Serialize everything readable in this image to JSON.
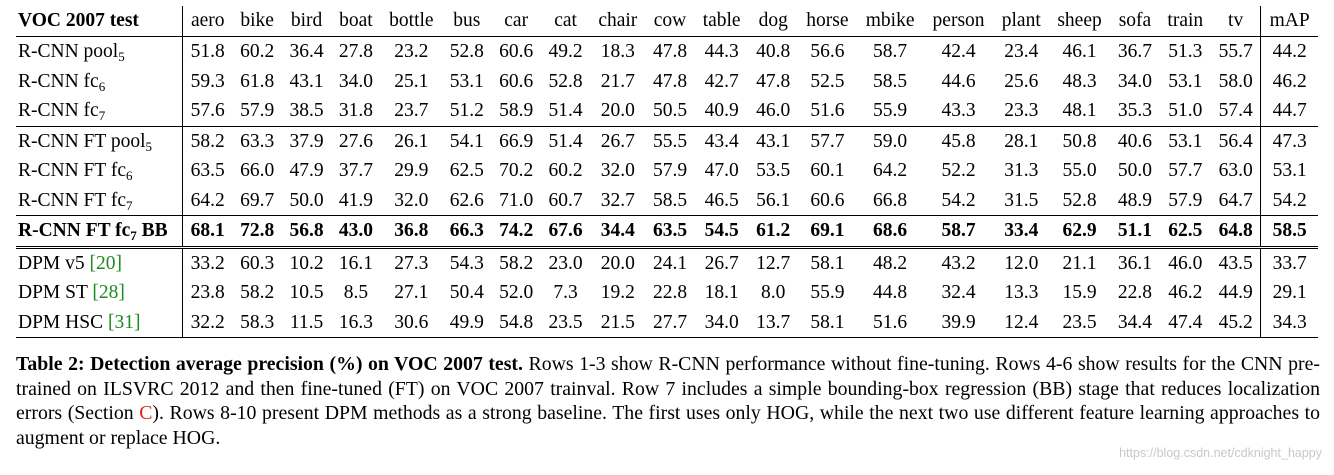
{
  "table": {
    "header_label": "VOC 2007 test",
    "columns": [
      "aero",
      "bike",
      "bird",
      "boat",
      "bottle",
      "bus",
      "car",
      "cat",
      "chair",
      "cow",
      "table",
      "dog",
      "horse",
      "mbike",
      "person",
      "plant",
      "sheep",
      "sofa",
      "train",
      "tv"
    ],
    "map_label": "mAP",
    "rows": [
      {
        "name": "R-CNN pool",
        "sub": "5",
        "suffix": "",
        "cite": "",
        "cells": [
          "51.8",
          "60.2",
          "36.4",
          "27.8",
          "23.2",
          "52.8",
          "60.6",
          "49.2",
          "18.3",
          "47.8",
          "44.3",
          "40.8",
          "56.6",
          "58.7",
          "42.4",
          "23.4",
          "46.1",
          "36.7",
          "51.3",
          "55.7"
        ],
        "map": "44.2"
      },
      {
        "name": "R-CNN fc",
        "sub": "6",
        "suffix": "",
        "cite": "",
        "cells": [
          "59.3",
          "61.8",
          "43.1",
          "34.0",
          "25.1",
          "53.1",
          "60.6",
          "52.8",
          "21.7",
          "47.8",
          "42.7",
          "47.8",
          "52.5",
          "58.5",
          "44.6",
          "25.6",
          "48.3",
          "34.0",
          "53.1",
          "58.0"
        ],
        "map": "46.2"
      },
      {
        "name": "R-CNN fc",
        "sub": "7",
        "suffix": "",
        "cite": "",
        "cells": [
          "57.6",
          "57.9",
          "38.5",
          "31.8",
          "23.7",
          "51.2",
          "58.9",
          "51.4",
          "20.0",
          "50.5",
          "40.9",
          "46.0",
          "51.6",
          "55.9",
          "43.3",
          "23.3",
          "48.1",
          "35.3",
          "51.0",
          "57.4"
        ],
        "map": "44.7"
      },
      {
        "name": "R-CNN FT pool",
        "sub": "5",
        "suffix": "",
        "cite": "",
        "cells": [
          "58.2",
          "63.3",
          "37.9",
          "27.6",
          "26.1",
          "54.1",
          "66.9",
          "51.4",
          "26.7",
          "55.5",
          "43.4",
          "43.1",
          "57.7",
          "59.0",
          "45.8",
          "28.1",
          "50.8",
          "40.6",
          "53.1",
          "56.4"
        ],
        "map": "47.3"
      },
      {
        "name": "R-CNN FT fc",
        "sub": "6",
        "suffix": "",
        "cite": "",
        "cells": [
          "63.5",
          "66.0",
          "47.9",
          "37.7",
          "29.9",
          "62.5",
          "70.2",
          "60.2",
          "32.0",
          "57.9",
          "47.0",
          "53.5",
          "60.1",
          "64.2",
          "52.2",
          "31.3",
          "55.0",
          "50.0",
          "57.7",
          "63.0"
        ],
        "map": "53.1"
      },
      {
        "name": "R-CNN FT fc",
        "sub": "7",
        "suffix": "",
        "cite": "",
        "cells": [
          "64.2",
          "69.7",
          "50.0",
          "41.9",
          "32.0",
          "62.6",
          "71.0",
          "60.7",
          "32.7",
          "58.5",
          "46.5",
          "56.1",
          "60.6",
          "66.8",
          "54.2",
          "31.5",
          "52.8",
          "48.9",
          "57.9",
          "64.7"
        ],
        "map": "54.2"
      },
      {
        "name": "R-CNN FT fc",
        "sub": "7",
        "suffix": " BB",
        "cite": "",
        "cells": [
          "68.1",
          "72.8",
          "56.8",
          "43.0",
          "36.8",
          "66.3",
          "74.2",
          "67.6",
          "34.4",
          "63.5",
          "54.5",
          "61.2",
          "69.1",
          "68.6",
          "58.7",
          "33.4",
          "62.9",
          "51.1",
          "62.5",
          "64.8"
        ],
        "map": "58.5"
      },
      {
        "name": "DPM v5 ",
        "sub": "",
        "suffix": "",
        "cite": "[20]",
        "cells": [
          "33.2",
          "60.3",
          "10.2",
          "16.1",
          "27.3",
          "54.3",
          "58.2",
          "23.0",
          "20.0",
          "24.1",
          "26.7",
          "12.7",
          "58.1",
          "48.2",
          "43.2",
          "12.0",
          "21.1",
          "36.1",
          "46.0",
          "43.5"
        ],
        "map": "33.7"
      },
      {
        "name": "DPM ST ",
        "sub": "",
        "suffix": "",
        "cite": "[28]",
        "cells": [
          "23.8",
          "58.2",
          "10.5",
          "8.5",
          "27.1",
          "50.4",
          "52.0",
          "7.3",
          "19.2",
          "22.8",
          "18.1",
          "8.0",
          "55.9",
          "44.8",
          "32.4",
          "13.3",
          "15.9",
          "22.8",
          "46.2",
          "44.9"
        ],
        "map": "29.1"
      },
      {
        "name": "DPM HSC ",
        "sub": "",
        "suffix": "",
        "cite": "[31]",
        "cells": [
          "32.2",
          "58.3",
          "11.5",
          "16.3",
          "30.6",
          "49.9",
          "54.8",
          "23.5",
          "21.5",
          "27.7",
          "34.0",
          "13.7",
          "58.1",
          "51.6",
          "39.9",
          "12.4",
          "23.5",
          "34.4",
          "47.4",
          "45.2"
        ],
        "map": "34.3"
      }
    ]
  },
  "caption": {
    "bold": "Table 2: Detection average precision (%) on VOC 2007 test.",
    "text1": " Rows 1-3 show R-CNN performance without fine-tuning. Rows 4-6 show results for the CNN pre-trained on ILSVRC 2012 and then fine-tuned (FT) on VOC 2007 trainval. Row 7 includes a simple bounding-box regression (BB) stage that reduces localization errors (Section ",
    "ref": "C",
    "text2": "). Rows 8-10 present DPM methods as a strong baseline. The first uses only HOG, while the next two use different feature learning approaches to augment or replace HOG."
  },
  "watermark": "https://blog.csdn.net/cdknight_happy",
  "colors": {
    "citation": "#1f8a1f",
    "reference": "#e0201c",
    "watermark": "#c8c8c8"
  }
}
